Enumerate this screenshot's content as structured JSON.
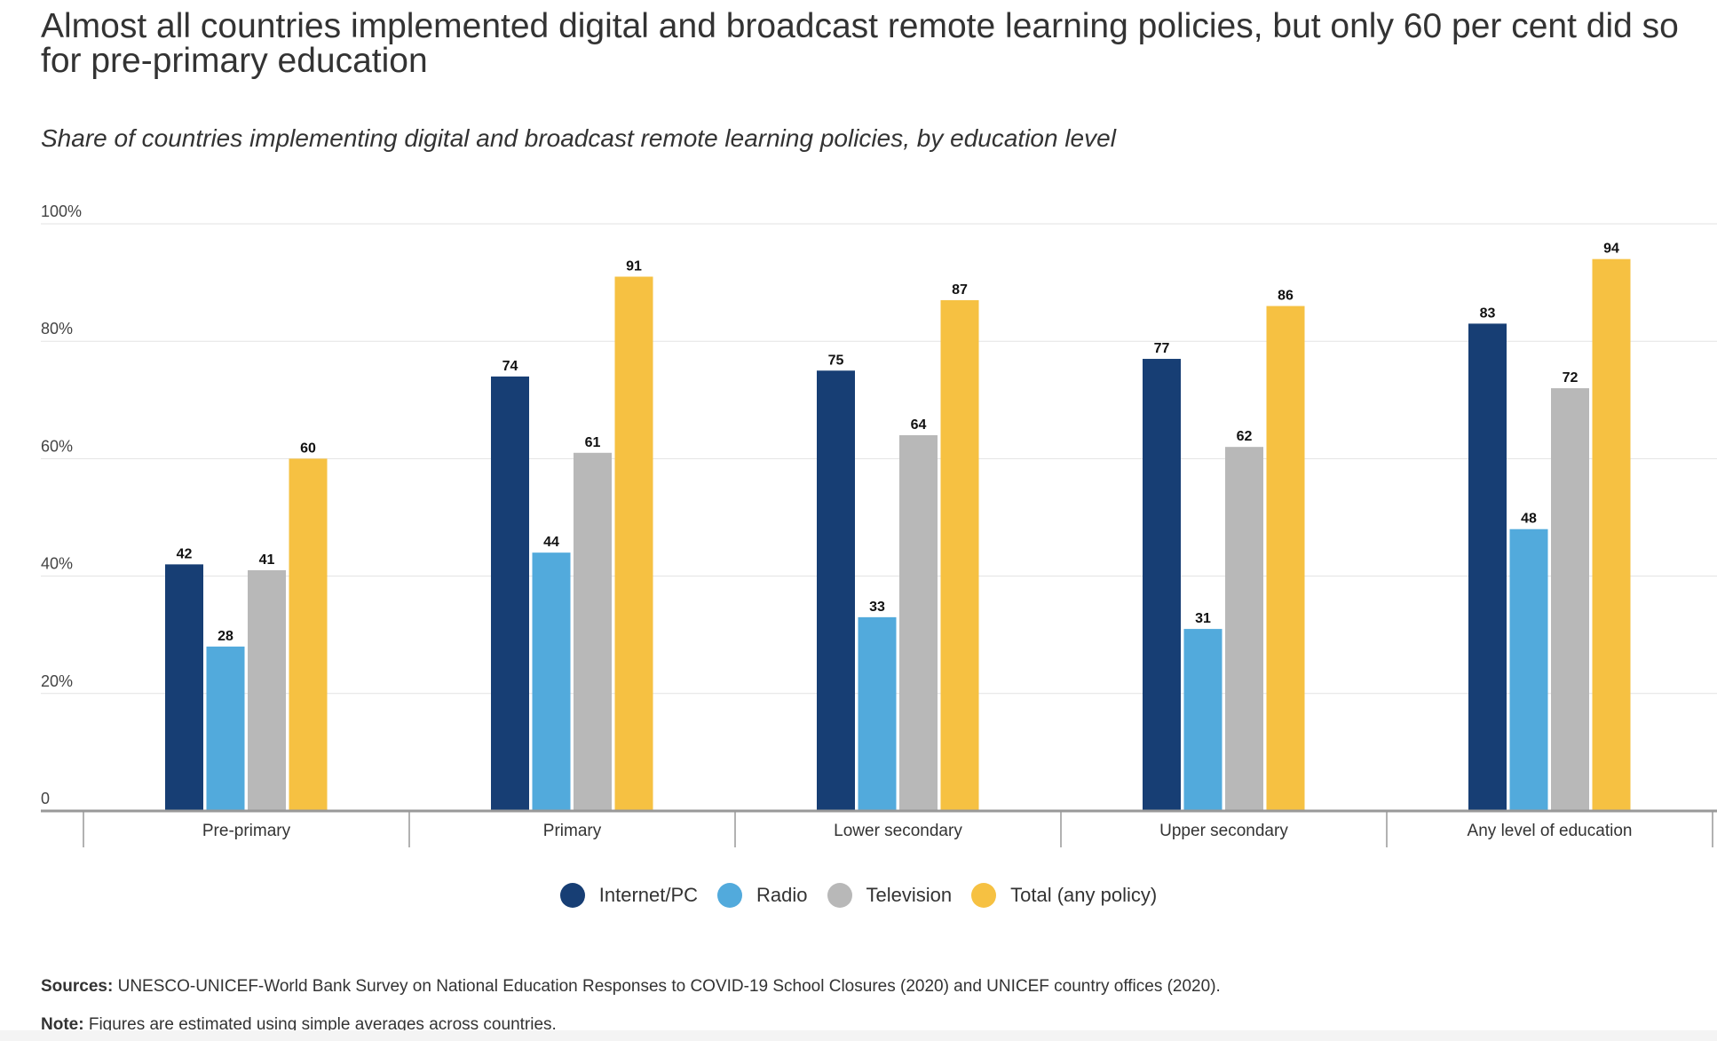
{
  "title": "Almost all countries implemented digital and broadcast remote learning policies, but only 60 per cent did so for pre-primary education",
  "subtitle": "Share of countries implementing digital and broadcast remote learning policies, by education level",
  "chart_data": {
    "type": "bar",
    "title": "",
    "xlabel": "",
    "ylabel": "",
    "ylim": [
      0,
      100
    ],
    "y_ticks": [
      "0",
      "20%",
      "40%",
      "60%",
      "80%",
      "100%"
    ],
    "grid": true,
    "legend_position": "bottom",
    "categories": [
      "Pre-primary",
      "Primary",
      "Lower secondary",
      "Upper secondary",
      "Any level of education"
    ],
    "series": [
      {
        "name": "Internet/PC",
        "color": "#173e74",
        "values": [
          42,
          74,
          75,
          77,
          83
        ]
      },
      {
        "name": "Radio",
        "color": "#52aadc",
        "values": [
          28,
          44,
          33,
          31,
          48
        ]
      },
      {
        "name": "Television",
        "color": "#b8b8b8",
        "values": [
          41,
          61,
          64,
          62,
          72
        ]
      },
      {
        "name": "Total (any policy)",
        "color": "#f6c142",
        "values": [
          60,
          91,
          87,
          86,
          94
        ]
      }
    ]
  },
  "footer": {
    "sources_label": "Sources:",
    "sources_text": " UNESCO-UNICEF-World Bank Survey on National Education Responses to COVID-19 School Closures (2020) and UNICEF country offices (2020).",
    "note_label": "Note:",
    "note_text": " Figures are estimated using simple averages across countries."
  }
}
